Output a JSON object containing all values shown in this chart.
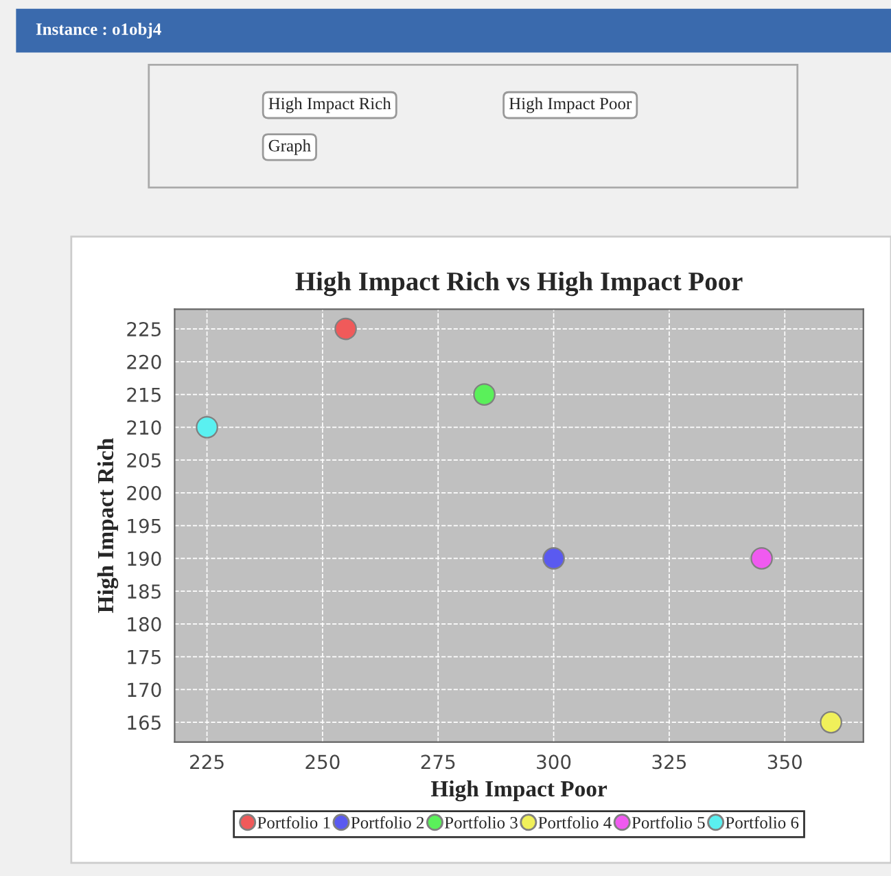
{
  "chart_data": {
    "type": "scatter",
    "title": "High Impact Rich vs High Impact Poor",
    "xlabel": "High Impact Poor",
    "ylabel": "High Impact Rich",
    "annotations": [
      "Instance : o1obj4",
      "High Impact Rich",
      "High Impact Poor",
      "Graph"
    ],
    "series": [
      {
        "name": "Portfolio 1",
        "color": "#f05a5a",
        "x": [
          255
        ],
        "values": [
          225
        ]
      },
      {
        "name": "Portfolio 2",
        "color": "#5a5af0",
        "x": [
          300
        ],
        "values": [
          190
        ]
      },
      {
        "name": "Portfolio 3",
        "color": "#5af05a",
        "x": [
          285
        ],
        "values": [
          215
        ]
      },
      {
        "name": "Portfolio 4",
        "color": "#f0f05a",
        "x": [
          360
        ],
        "values": [
          165
        ]
      },
      {
        "name": "Portfolio 5",
        "color": "#f05af0",
        "x": [
          345
        ],
        "values": [
          190
        ]
      },
      {
        "name": "Portfolio 6",
        "color": "#5af0f0",
        "x": [
          225
        ],
        "values": [
          210
        ]
      }
    ],
    "xlim": [
      218,
      367
    ],
    "xticks": [
      225,
      250,
      275,
      300,
      325,
      350
    ],
    "ylim": [
      162,
      228
    ],
    "yticks": [
      165,
      170,
      175,
      180,
      185,
      190,
      195,
      200,
      205,
      210,
      215,
      220,
      225
    ],
    "grid": true,
    "legend": "bottom",
    "marker": "circle"
  }
}
